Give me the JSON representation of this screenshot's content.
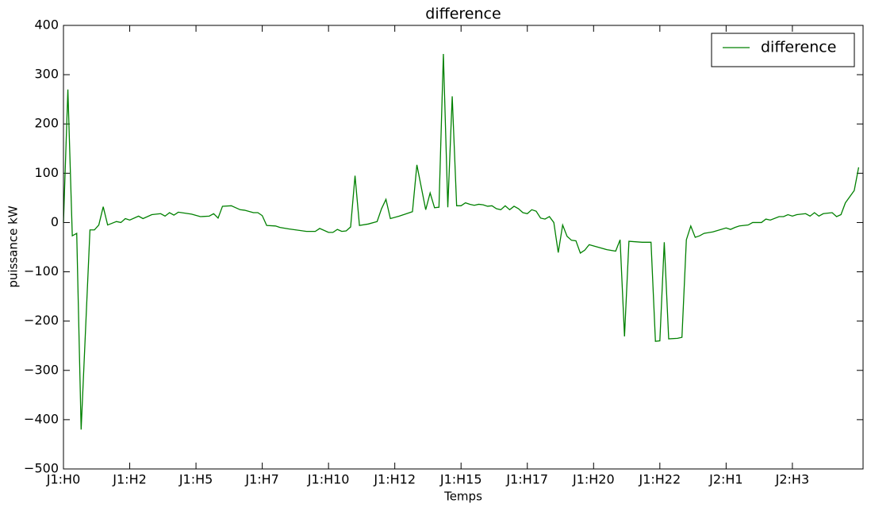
{
  "chart_data": {
    "type": "line",
    "title": "difference",
    "xlabel": "Temps",
    "ylabel": "puissance kW",
    "x": [
      0,
      1,
      2,
      3,
      4,
      6,
      7,
      8,
      9,
      10,
      12,
      13,
      14,
      15,
      17,
      18,
      20,
      22,
      23,
      24,
      25,
      26,
      29,
      31,
      33,
      34,
      35,
      36,
      38,
      39,
      40,
      41,
      43,
      44,
      45,
      46,
      48,
      49,
      51,
      55,
      57,
      58,
      60,
      61,
      62,
      63,
      64,
      65,
      66,
      67,
      69,
      71,
      72,
      73,
      74,
      76,
      79,
      80,
      82,
      83,
      84,
      85,
      86,
      87,
      88,
      89,
      90,
      91,
      92,
      93,
      94,
      95,
      96,
      97,
      98,
      99,
      100,
      101,
      102,
      103,
      104,
      105,
      106,
      107,
      108,
      109,
      110,
      111,
      112,
      113,
      114,
      115,
      116,
      117,
      118,
      119,
      121,
      123,
      125,
      126,
      127,
      128,
      131,
      133,
      134,
      135,
      136,
      137,
      139,
      140,
      141,
      142,
      143,
      144,
      145,
      147,
      150,
      151,
      152,
      153,
      155,
      156,
      158,
      159,
      160,
      162,
      163,
      164,
      165,
      166,
      168,
      169,
      170,
      171,
      172,
      174,
      175,
      176,
      177,
      179,
      180
    ],
    "series": [
      {
        "name": "difference",
        "color": "#008000",
        "values": [
          0,
          270,
          -27,
          -22,
          -420,
          -15,
          -15,
          -5,
          32,
          -5,
          2,
          0,
          8,
          5,
          13,
          8,
          16,
          18,
          13,
          20,
          15,
          21,
          17,
          12,
          13,
          18,
          9,
          33,
          34,
          30,
          26,
          25,
          20,
          20,
          14,
          -6,
          -7,
          -10,
          -13,
          -18,
          -18,
          -12,
          -20,
          -20,
          -14,
          -18,
          -17,
          -9,
          95,
          -6,
          -3,
          2,
          28,
          47,
          8,
          13,
          22,
          117,
          26,
          60,
          30,
          31,
          342,
          31,
          256,
          34,
          34,
          40,
          37,
          35,
          37,
          36,
          33,
          34,
          28,
          26,
          34,
          26,
          33,
          28,
          20,
          18,
          26,
          23,
          9,
          7,
          12,
          0,
          -61,
          -5,
          -28,
          -36,
          -37,
          -62,
          -56,
          -45,
          -50,
          -55,
          -58,
          -35,
          -231,
          -38,
          -40,
          -40,
          -241,
          -240,
          -40,
          -236,
          -235,
          -233,
          -35,
          -7,
          -30,
          -27,
          -22,
          -19,
          -11,
          -14,
          -10,
          -7,
          -5,
          0,
          0,
          7,
          5,
          12,
          12,
          16,
          13,
          16,
          18,
          13,
          20,
          13,
          18,
          20,
          12,
          16,
          40,
          65,
          112
        ]
      }
    ],
    "xlim": [
      0,
      181
    ],
    "xticks": [
      {
        "value": 0,
        "label": "J1:H0"
      },
      {
        "value": 15,
        "label": "J1:H2"
      },
      {
        "value": 30,
        "label": "J1:H5"
      },
      {
        "value": 45,
        "label": "J1:H7"
      },
      {
        "value": 60,
        "label": "J1:H10"
      },
      {
        "value": 75,
        "label": "J1:H12"
      },
      {
        "value": 90,
        "label": "J1:H15"
      },
      {
        "value": 105,
        "label": "J1:H17"
      },
      {
        "value": 120,
        "label": "J1:H20"
      },
      {
        "value": 135,
        "label": "J1:H22"
      },
      {
        "value": 150,
        "label": "J2:H1"
      },
      {
        "value": 165,
        "label": "J2:H3"
      }
    ],
    "ylim": [
      -500,
      400
    ],
    "yticks": [
      {
        "value": -500,
        "label": "−500"
      },
      {
        "value": -400,
        "label": "−400"
      },
      {
        "value": -300,
        "label": "−300"
      },
      {
        "value": -200,
        "label": "−200"
      },
      {
        "value": -100,
        "label": "−100"
      },
      0,
      100,
      200,
      300,
      400
    ],
    "legend": "upper right"
  }
}
